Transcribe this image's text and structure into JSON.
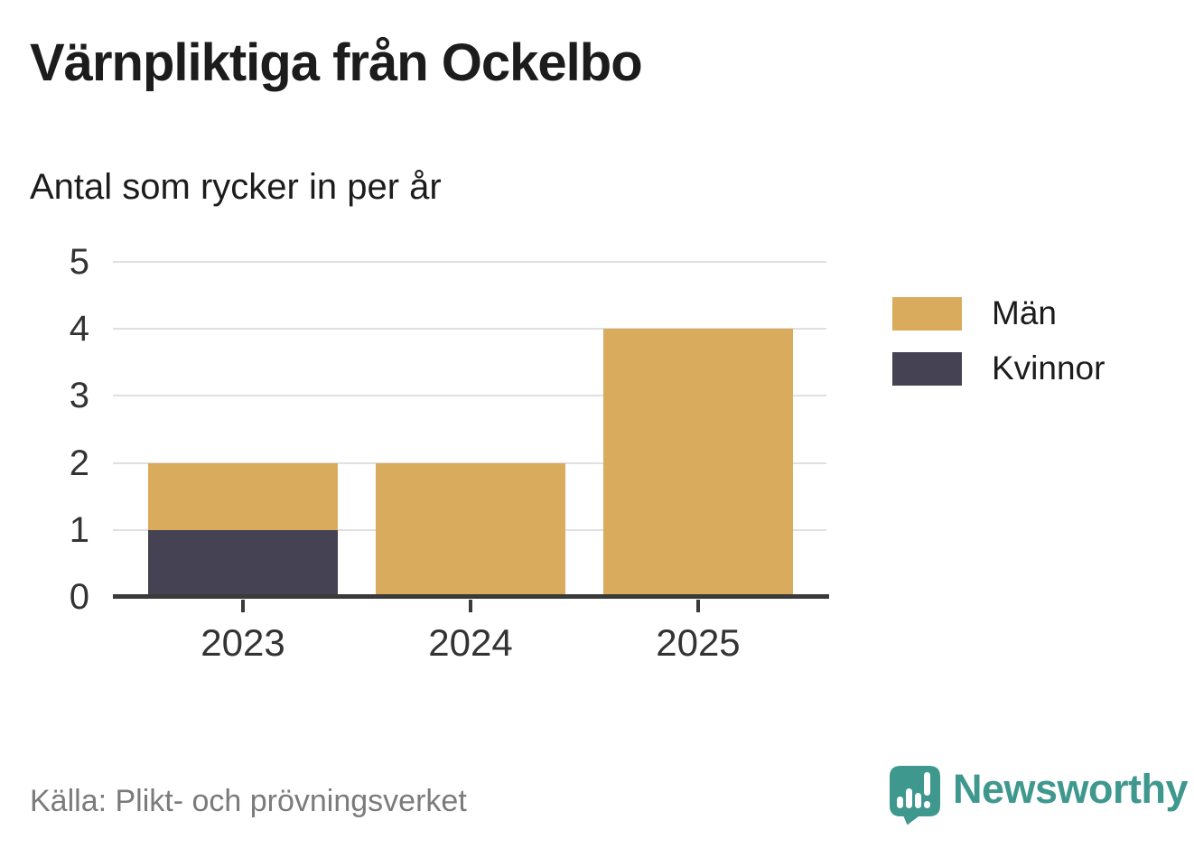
{
  "colors": {
    "axis": "#3a3a3a",
    "grid": "#e0e0e0",
    "text": "#1c1c1c",
    "muted": "#7b7b7b",
    "teal": "#3f988e"
  },
  "chart_data": {
    "type": "bar",
    "stacked": true,
    "title": "Värnpliktiga från Ockelbo",
    "subtitle": "Antal som rycker in per år",
    "xlabel": "",
    "ylabel": "",
    "categories": [
      "2023",
      "2024",
      "2025"
    ],
    "series": [
      {
        "name": "Män",
        "color": "#d9ab5c",
        "values": [
          1,
          2,
          4
        ]
      },
      {
        "name": "Kvinnor",
        "color": "#454253",
        "values": [
          1,
          0,
          0
        ]
      }
    ],
    "stack_order_bottom_to_top": [
      "Kvinnor",
      "Män"
    ],
    "totals": [
      2,
      2,
      4
    ],
    "ylim": [
      0,
      5
    ],
    "yticks": [
      0,
      1,
      2,
      3,
      4,
      5
    ],
    "grid": true,
    "legend_position": "right"
  },
  "legend": {
    "items": [
      {
        "label": "Män",
        "color": "#d9ab5c"
      },
      {
        "label": "Kvinnor",
        "color": "#454253"
      }
    ]
  },
  "footer": {
    "source": "Källa: Plikt- och prövningsverket",
    "brand": "Newsworthy"
  }
}
